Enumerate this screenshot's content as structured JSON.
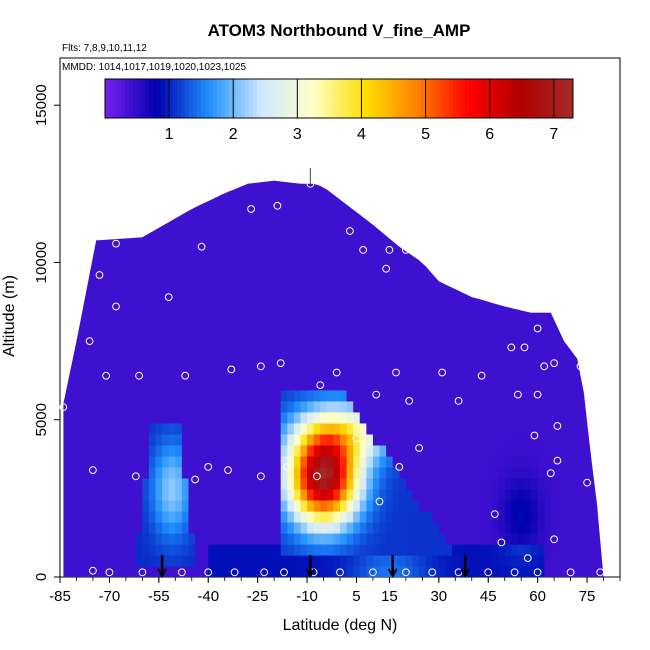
{
  "chart_data": {
    "type": "heatmap",
    "title": "ATOM3 Northbound V_fine_AMP",
    "annotations": [
      "Flts: 7,8,9,10,11,12",
      "MMDD: 1014,1017,1019,1020,1023,1025"
    ],
    "xlabel": "Latitude (deg N)",
    "ylabel": "Altitude (m)",
    "xlim": [
      -85,
      85
    ],
    "ylim": [
      0,
      16500
    ],
    "x_ticks": [
      -85,
      -70,
      -55,
      -40,
      -25,
      -10,
      5,
      15,
      30,
      45,
      60,
      75
    ],
    "y_ticks": [
      0,
      5000,
      10000,
      15000
    ],
    "colorbar": {
      "range": [
        0,
        7.3
      ],
      "ticks": [
        1,
        2,
        3,
        4,
        5,
        6,
        7
      ],
      "colors": [
        "#7a1ff0",
        "#0000b0",
        "#1e90ff",
        "#cfe8ff",
        "#ffffc8",
        "#ffe000",
        "#ff8000",
        "#ff0000",
        "#b00000",
        "#a52a2a"
      ]
    },
    "background_value": 0.4,
    "features": [
      {
        "name": "southern blue column",
        "lat_range": [
          -62,
          -44
        ],
        "alt_range": [
          500,
          4800
        ],
        "peak_value": 2.2
      },
      {
        "name": "tropical plume",
        "lat_range": [
          -18,
          40
        ],
        "alt_range": [
          800,
          6000
        ],
        "peak_value": 7.0,
        "peak_lat": -5,
        "peak_alt": 3200
      },
      {
        "name": "low altitude band",
        "lat_range": [
          -40,
          62
        ],
        "alt_range": [
          0,
          900
        ],
        "peak_value": 1.5
      }
    ],
    "arrows_lat": [
      -54,
      -9,
      16,
      38
    ],
    "sample_points": [
      {
        "lat": -84,
        "alt": 5400
      },
      {
        "lat": -75,
        "alt": 3400
      },
      {
        "lat": -76,
        "alt": 7500
      },
      {
        "lat": -73,
        "alt": 9600
      },
      {
        "lat": -71,
        "alt": 6400
      },
      {
        "lat": -68,
        "alt": 10600
      },
      {
        "lat": -68,
        "alt": 8600
      },
      {
        "lat": -62,
        "alt": 3200
      },
      {
        "lat": -61,
        "alt": 6400
      },
      {
        "lat": -52,
        "alt": 8900
      },
      {
        "lat": -47,
        "alt": 6400
      },
      {
        "lat": -44,
        "alt": 3100
      },
      {
        "lat": -42,
        "alt": 10500
      },
      {
        "lat": -40,
        "alt": 3500
      },
      {
        "lat": -34,
        "alt": 3400
      },
      {
        "lat": -33,
        "alt": 6600
      },
      {
        "lat": -27,
        "alt": 11700
      },
      {
        "lat": -24,
        "alt": 6700
      },
      {
        "lat": -24,
        "alt": 3200
      },
      {
        "lat": -19,
        "alt": 11800
      },
      {
        "lat": -18,
        "alt": 6800
      },
      {
        "lat": -16,
        "alt": 3500
      },
      {
        "lat": -9,
        "alt": 12500
      },
      {
        "lat": -7,
        "alt": 3200
      },
      {
        "lat": -6,
        "alt": 6100
      },
      {
        "lat": -1,
        "alt": 6500
      },
      {
        "lat": 3,
        "alt": 11000
      },
      {
        "lat": 5,
        "alt": 4400
      },
      {
        "lat": 7,
        "alt": 10400
      },
      {
        "lat": 11,
        "alt": 5800
      },
      {
        "lat": 12,
        "alt": 2400
      },
      {
        "lat": 14,
        "alt": 9800
      },
      {
        "lat": 15,
        "alt": 10400
      },
      {
        "lat": 17,
        "alt": 6500
      },
      {
        "lat": 18,
        "alt": 3500
      },
      {
        "lat": 20,
        "alt": 10400
      },
      {
        "lat": 21,
        "alt": 5600
      },
      {
        "lat": 24,
        "alt": 4100
      },
      {
        "lat": 31,
        "alt": 6500
      },
      {
        "lat": 36,
        "alt": 5600
      },
      {
        "lat": 43,
        "alt": 6400
      },
      {
        "lat": 47,
        "alt": 2000
      },
      {
        "lat": 49,
        "alt": 1100
      },
      {
        "lat": 52,
        "alt": 7300
      },
      {
        "lat": 54,
        "alt": 5800
      },
      {
        "lat": 56,
        "alt": 7300
      },
      {
        "lat": 57,
        "alt": 600
      },
      {
        "lat": 59,
        "alt": 4500
      },
      {
        "lat": 60,
        "alt": 5800
      },
      {
        "lat": 60,
        "alt": 7900
      },
      {
        "lat": 62,
        "alt": 6700
      },
      {
        "lat": 64,
        "alt": 3300
      },
      {
        "lat": 65,
        "alt": 6800
      },
      {
        "lat": 65,
        "alt": 1200
      },
      {
        "lat": 66,
        "alt": 3700
      },
      {
        "lat": 66,
        "alt": 4800
      },
      {
        "lat": 67,
        "alt": 8400
      },
      {
        "lat": 73,
        "alt": 6700
      },
      {
        "lat": 75,
        "alt": 3000
      },
      {
        "lat": -75,
        "alt": 200
      },
      {
        "lat": -70,
        "alt": 150
      },
      {
        "lat": -60,
        "alt": 150
      },
      {
        "lat": -48,
        "alt": 150
      },
      {
        "lat": -40,
        "alt": 150
      },
      {
        "lat": -32,
        "alt": 150
      },
      {
        "lat": -23,
        "alt": 150
      },
      {
        "lat": -17,
        "alt": 150
      },
      {
        "lat": -8,
        "alt": 150
      },
      {
        "lat": 0,
        "alt": 150
      },
      {
        "lat": 10,
        "alt": 150
      },
      {
        "lat": 20,
        "alt": 150
      },
      {
        "lat": 28,
        "alt": 150
      },
      {
        "lat": 36,
        "alt": 150
      },
      {
        "lat": 45,
        "alt": 150
      },
      {
        "lat": 53,
        "alt": 150
      },
      {
        "lat": 60,
        "alt": 150
      },
      {
        "lat": 70,
        "alt": 150
      },
      {
        "lat": 79,
        "alt": 150
      }
    ]
  }
}
